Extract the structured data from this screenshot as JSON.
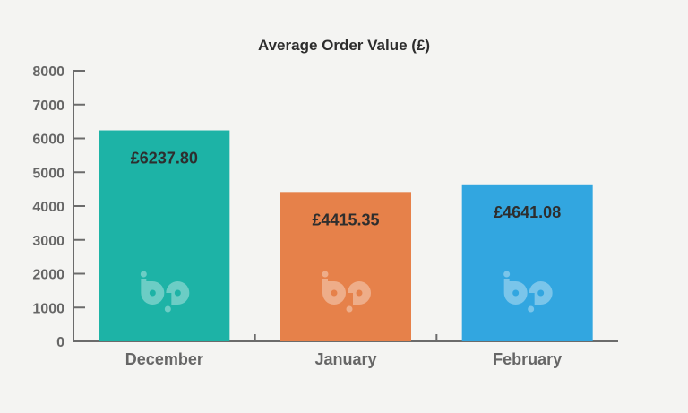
{
  "chart_data": {
    "type": "bar",
    "title": "Average Order Value (£)",
    "xlabel": "",
    "ylabel": "",
    "categories": [
      "December",
      "January",
      "February"
    ],
    "values": [
      6237.8,
      4415.35,
      4641.08
    ],
    "data_labels": [
      "£6237.80",
      "£4415.35",
      "£4641.08"
    ],
    "colors": [
      "#1db3a6",
      "#e6814a",
      "#32a6e0"
    ],
    "ylim": [
      0,
      8000
    ],
    "yticks": [
      0,
      1000,
      2000,
      3000,
      4000,
      5000,
      6000,
      7000,
      8000
    ],
    "grid": false,
    "legend": "none",
    "watermark_icon": "bp-logo-icon"
  }
}
